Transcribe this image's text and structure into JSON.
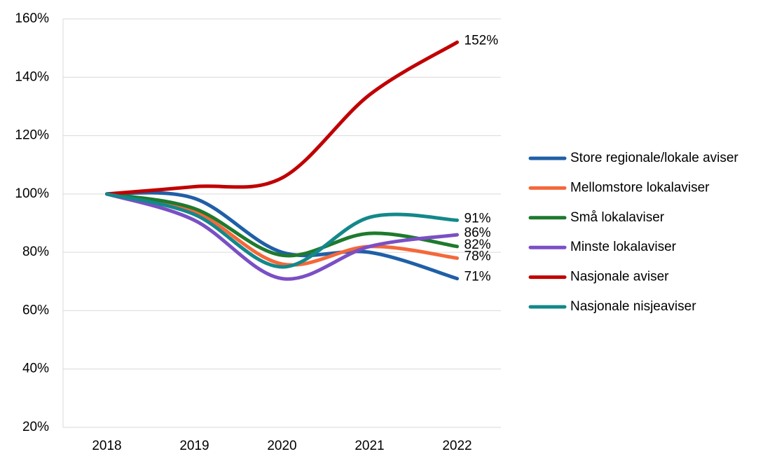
{
  "chart_data": {
    "type": "line",
    "categories": [
      "2018",
      "2019",
      "2020",
      "2021",
      "2022"
    ],
    "series": [
      {
        "name": "Store regionale/lokale aviser",
        "color": "#1f5fa6",
        "values": [
          100,
          98.5,
          80,
          80,
          71
        ],
        "value_labels": [
          null,
          null,
          null,
          null,
          "71%"
        ]
      },
      {
        "name": "Mellomstore lokalaviser",
        "color": "#f4683a",
        "values": [
          100,
          94,
          76,
          82,
          78
        ],
        "value_labels": [
          null,
          null,
          null,
          null,
          "78%"
        ]
      },
      {
        "name": "Små lokalaviser",
        "color": "#1e7a2e",
        "values": [
          100,
          95,
          79,
          86.5,
          82
        ],
        "value_labels": [
          null,
          null,
          null,
          null,
          "82%"
        ]
      },
      {
        "name": "Minste lokalaviser",
        "color": "#7b4fc4",
        "values": [
          100,
          91,
          71,
          82,
          86
        ],
        "value_labels": [
          null,
          null,
          null,
          null,
          "86%"
        ]
      },
      {
        "name": "Nasjonale aviser",
        "color": "#c00000",
        "values": [
          100,
          102.5,
          105.5,
          134,
          152
        ],
        "value_labels": [
          null,
          null,
          null,
          null,
          "152%"
        ]
      },
      {
        "name": "Nasjonale nisjeaviser",
        "color": "#13888a",
        "values": [
          100,
          93,
          75,
          92,
          91
        ],
        "value_labels": [
          null,
          null,
          null,
          null,
          "91%"
        ]
      }
    ],
    "ylim": [
      20,
      160
    ],
    "yticks": [
      {
        "value": 20,
        "label": "20%"
      },
      {
        "value": 40,
        "label": "40%"
      },
      {
        "value": 60,
        "label": "60%"
      },
      {
        "value": 80,
        "label": "80%"
      },
      {
        "value": 100,
        "label": "100%"
      },
      {
        "value": 120,
        "label": "120%"
      },
      {
        "value": 140,
        "label": "140%"
      },
      {
        "value": 160,
        "label": "160%"
      }
    ],
    "grid": true,
    "legend": "right"
  }
}
